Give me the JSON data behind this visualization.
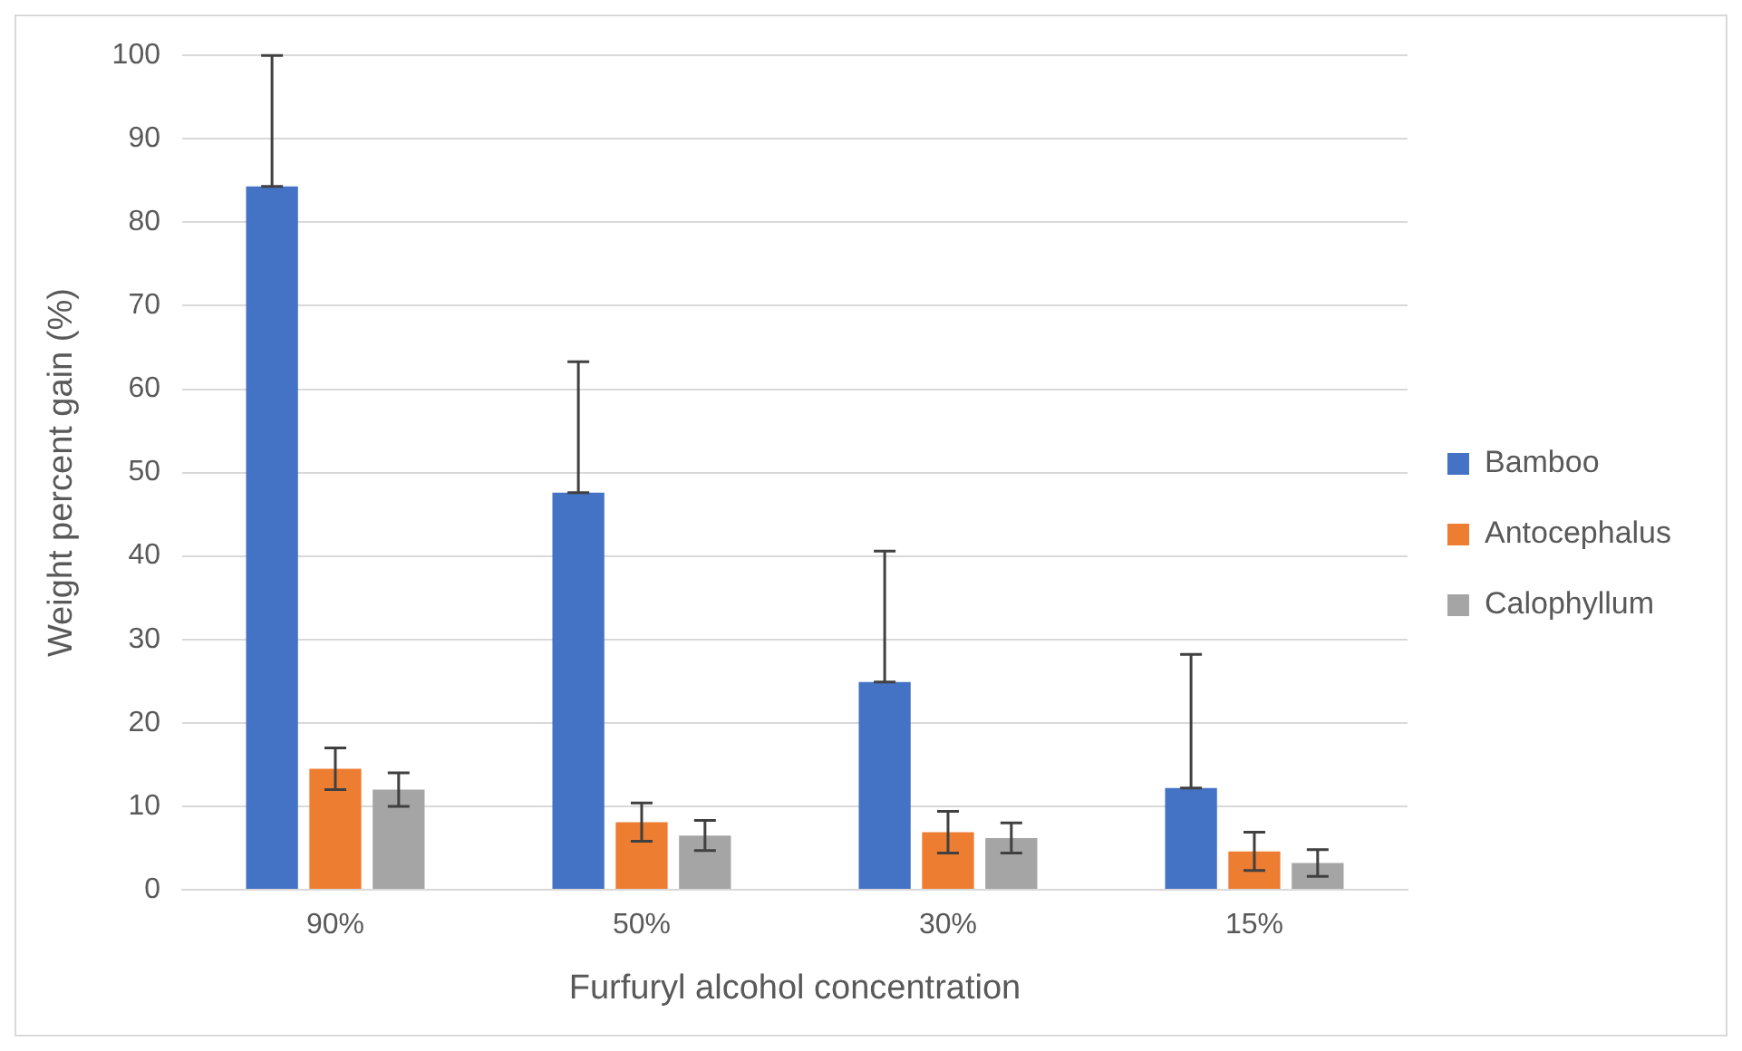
{
  "chart_data": {
    "type": "bar",
    "xlabel": "Furfuryl alcohol concentration",
    "ylabel": "Weight percent gain (%)",
    "categories": [
      "90%",
      "50%",
      "30%",
      "15%"
    ],
    "series": [
      {
        "name": "Bamboo",
        "color": "#4472c4",
        "values": [
          84.3,
          47.6,
          24.9,
          12.2
        ],
        "errors": [
          [
            84.3,
            100
          ],
          [
            47.6,
            63.3
          ],
          [
            24.9,
            40.6
          ],
          [
            12.2,
            28.2
          ]
        ]
      },
      {
        "name": "Antocephalus",
        "color": "#ed7d31",
        "values": [
          14.5,
          8.1,
          6.9,
          4.6
        ],
        "errors": [
          2.5,
          2.3,
          2.5,
          2.3
        ]
      },
      {
        "name": "Calophyllum",
        "color": "#a5a5a5",
        "values": [
          12,
          6.5,
          6.2,
          3.2
        ],
        "errors": [
          2,
          1.8,
          1.8,
          1.6
        ]
      }
    ],
    "ylim": [
      0,
      100
    ],
    "yticks": [
      0,
      10,
      20,
      30,
      40,
      50,
      60,
      70,
      80,
      90,
      100
    ],
    "grid": "y",
    "legend": "right"
  }
}
